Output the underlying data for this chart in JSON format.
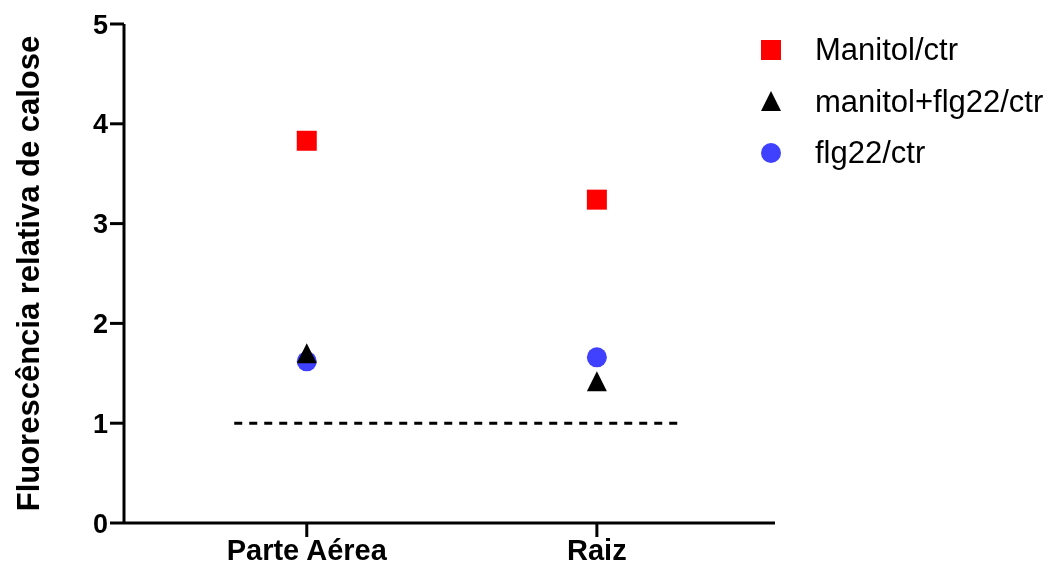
{
  "chart_data": {
    "type": "scatter",
    "ylabel": "Fluorescência relativa de calose",
    "categories": [
      "Parte Aérea",
      "Raiz"
    ],
    "series": [
      {
        "name": "Manitol/ctr",
        "color": "#ff0000",
        "marker": "square",
        "values": [
          3.83,
          3.24
        ]
      },
      {
        "name": "manitol+flg22/ctr",
        "color": "#000000",
        "marker": "triangle",
        "values": [
          1.7,
          1.42
        ]
      },
      {
        "name": "flg22/ctr",
        "color": "#4040ff",
        "marker": "circle",
        "values": [
          1.62,
          1.66
        ]
      }
    ],
    "ylim": [
      0,
      5
    ],
    "yticks": [
      0,
      1,
      2,
      3,
      4,
      5
    ],
    "legend": "top right",
    "ref_lines": [
      {
        "axis": "y",
        "value": 1,
        "line_style": "dashed",
        "color": "#000000"
      }
    ]
  }
}
